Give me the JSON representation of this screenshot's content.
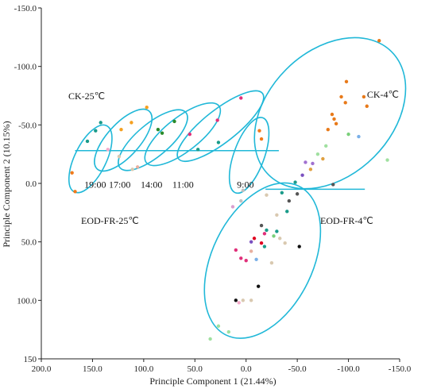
{
  "chart_data": {
    "type": "scatter",
    "xlabel": "Principle Component 1 (21.44%)",
    "ylabel": "Principle Component 2 (10.15%)",
    "xlim": [
      200,
      -150
    ],
    "ylim": [
      -150,
      150
    ],
    "x_ticks": [
      200,
      150,
      100,
      50,
      0,
      -50,
      -100,
      -150
    ],
    "x_tick_labels": [
      "200.0",
      "150.0",
      "100.0",
      "50.0",
      "0.0",
      "-50.0",
      "-100.0",
      "-150.0"
    ],
    "y_ticks": [
      -150,
      -100,
      -50,
      0,
      50,
      100,
      150
    ],
    "y_tick_labels": [
      "-150.0",
      "-100.0",
      "-50.0",
      "0.0",
      "50.0",
      "100.0",
      "150"
    ],
    "grid": false,
    "accent_color": "#21b8d8",
    "points": [
      {
        "x": 170,
        "y": -9,
        "color": "#f07a1a"
      },
      {
        "x": 167,
        "y": 7,
        "color": "#f07a1a"
      },
      {
        "x": 155,
        "y": -36,
        "color": "#1a9b8a"
      },
      {
        "x": 147,
        "y": -45,
        "color": "#1a9b8a"
      },
      {
        "x": 142,
        "y": -52,
        "color": "#1a9b8a"
      },
      {
        "x": 135,
        "y": -29,
        "color": "#f5a9c9"
      },
      {
        "x": 124,
        "y": -23,
        "color": "#d9c9b0"
      },
      {
        "x": 122,
        "y": -46,
        "color": "#f5a020"
      },
      {
        "x": 112,
        "y": -52,
        "color": "#f5a020"
      },
      {
        "x": 97,
        "y": -65,
        "color": "#f5a020"
      },
      {
        "x": 111,
        "y": -12,
        "color": "#d9c9b0"
      },
      {
        "x": 106,
        "y": -14,
        "color": "#e8b0a0"
      },
      {
        "x": 86,
        "y": -46,
        "color": "#2a8a2a"
      },
      {
        "x": 82,
        "y": -43,
        "color": "#2a8a2a"
      },
      {
        "x": 70,
        "y": -53,
        "color": "#2a8a2a"
      },
      {
        "x": 55,
        "y": -42,
        "color": "#e0307a"
      },
      {
        "x": 47,
        "y": -29,
        "color": "#1a9b8a"
      },
      {
        "x": 28,
        "y": -54,
        "color": "#e0307a"
      },
      {
        "x": 27,
        "y": -35,
        "color": "#1a9b8a"
      },
      {
        "x": 5,
        "y": -73,
        "color": "#e0307a"
      },
      {
        "x": 13,
        "y": 20,
        "color": "#d9a0d0"
      },
      {
        "x": 5,
        "y": 15,
        "color": "#c0c0c0"
      },
      {
        "x": 3,
        "y": 6,
        "color": "#c0c0c0"
      },
      {
        "x": -15,
        "y": -38,
        "color": "#f07a1a"
      },
      {
        "x": -13,
        "y": -45,
        "color": "#f07a1a"
      },
      {
        "x": -130,
        "y": -122,
        "color": "#e87a1a"
      },
      {
        "x": -98,
        "y": -87,
        "color": "#e87a1a"
      },
      {
        "x": -93,
        "y": -74,
        "color": "#e87a1a"
      },
      {
        "x": -115,
        "y": -74,
        "color": "#e87a1a"
      },
      {
        "x": -118,
        "y": -66,
        "color": "#e87a1a"
      },
      {
        "x": -97,
        "y": -69,
        "color": "#e87a1a"
      },
      {
        "x": -84,
        "y": -59,
        "color": "#e87a1a"
      },
      {
        "x": -86,
        "y": -55,
        "color": "#e87a1a"
      },
      {
        "x": -88,
        "y": -51,
        "color": "#e87a1a"
      },
      {
        "x": -80,
        "y": -46,
        "color": "#e87a1a"
      },
      {
        "x": -100,
        "y": -42,
        "color": "#7ad07a"
      },
      {
        "x": -110,
        "y": -40,
        "color": "#7ab0e8"
      },
      {
        "x": -138,
        "y": -20,
        "color": "#a0e0a0"
      },
      {
        "x": -78,
        "y": -32,
        "color": "#a0e0a0"
      },
      {
        "x": -70,
        "y": -25,
        "color": "#a0e0a0"
      },
      {
        "x": -75,
        "y": -21,
        "color": "#e0a040"
      },
      {
        "x": -65,
        "y": -17,
        "color": "#a070d0"
      },
      {
        "x": -58,
        "y": -18,
        "color": "#a070d0"
      },
      {
        "x": -63,
        "y": -12,
        "color": "#e0a040"
      },
      {
        "x": -55,
        "y": -7,
        "color": "#7a50c0"
      },
      {
        "x": -85,
        "y": 1,
        "color": "#555555"
      },
      {
        "x": -48,
        "y": -1,
        "color": "#1a9b8a"
      },
      {
        "x": -50,
        "y": 9,
        "color": "#555555"
      },
      {
        "x": -35,
        "y": 8,
        "color": "#1a9b8a"
      },
      {
        "x": -20,
        "y": 10,
        "color": "#d9c9b0"
      },
      {
        "x": -42,
        "y": 15,
        "color": "#555555"
      },
      {
        "x": -40,
        "y": 24,
        "color": "#1a9b8a"
      },
      {
        "x": -30,
        "y": 27,
        "color": "#d9c9b0"
      },
      {
        "x": -15,
        "y": 36,
        "color": "#555555"
      },
      {
        "x": -20,
        "y": 40,
        "color": "#1a9b8a"
      },
      {
        "x": -18,
        "y": 43,
        "color": "#e0307a"
      },
      {
        "x": -30,
        "y": 41,
        "color": "#1a9b8a"
      },
      {
        "x": -27,
        "y": 45,
        "color": "#7ad07a"
      },
      {
        "x": -33,
        "y": 47,
        "color": "#d9c9b0"
      },
      {
        "x": -38,
        "y": 51,
        "color": "#d9c9b0"
      },
      {
        "x": -8,
        "y": 47,
        "color": "#e00020"
      },
      {
        "x": -5,
        "y": 50,
        "color": "#7a50c0"
      },
      {
        "x": -18,
        "y": 54,
        "color": "#1a9b8a"
      },
      {
        "x": -15,
        "y": 51,
        "color": "#e00020"
      },
      {
        "x": -52,
        "y": 54,
        "color": "#111111"
      },
      {
        "x": 10,
        "y": 57,
        "color": "#e0307a"
      },
      {
        "x": -5,
        "y": 58,
        "color": "#e8b0a0"
      },
      {
        "x": 5,
        "y": 64,
        "color": "#e0307a"
      },
      {
        "x": 0,
        "y": 66,
        "color": "#e0307a"
      },
      {
        "x": -10,
        "y": 65,
        "color": "#7ab0e8"
      },
      {
        "x": -25,
        "y": 68,
        "color": "#d9c9b0"
      },
      {
        "x": -12,
        "y": 88,
        "color": "#111111"
      },
      {
        "x": 10,
        "y": 100,
        "color": "#111111"
      },
      {
        "x": 7,
        "y": 102,
        "color": "#f5a9c9"
      },
      {
        "x": -5,
        "y": 100,
        "color": "#d9c9b0"
      },
      {
        "x": 3,
        "y": 100,
        "color": "#d9c9b0"
      },
      {
        "x": 27,
        "y": 122,
        "color": "#a0e0a0"
      },
      {
        "x": 17,
        "y": 127,
        "color": "#a0e0a0"
      },
      {
        "x": 35,
        "y": 133,
        "color": "#a0e0a0"
      }
    ],
    "ellipses": [
      {
        "cx": 152,
        "cy": -21,
        "rx": 36,
        "ry": 13.5,
        "angle": -64
      },
      {
        "cx": 120,
        "cy": -37,
        "rx": 38,
        "ry": 14,
        "angle": -48
      },
      {
        "cx": 91,
        "cy": -37,
        "rx": 42,
        "ry": 14,
        "angle": -40
      },
      {
        "cx": 62,
        "cy": -42,
        "rx": 45,
        "ry": 14.5,
        "angle": -38
      },
      {
        "cx": 25,
        "cy": -49,
        "rx": 52,
        "ry": 14,
        "angle": -38
      },
      {
        "cx": -3,
        "cy": -24,
        "rx": 39,
        "ry": 13,
        "angle": -70
      },
      {
        "cx": -82,
        "cy": -60,
        "rx": 85,
        "ry": 53,
        "angle": -45
      },
      {
        "cx": -16,
        "cy": 66,
        "rx": 81,
        "ry": 43,
        "angle": -64
      }
    ],
    "reference_lines": [
      {
        "x1": 167,
        "x2": -32,
        "y": -28
      },
      {
        "x1": -19,
        "x2": -116,
        "y": 5
      }
    ],
    "annotations": [
      {
        "text": "CK-25℃",
        "x": 160,
        "y": -74
      },
      {
        "text": "CK-4℃",
        "x": -120,
        "y": -74
      },
      {
        "text": "EOD-FR-25℃",
        "x": 141,
        "y": -33,
        "y_note": "unused"
      },
      {
        "text": "EOD-FR-4℃",
        "x": -58,
        "y": 33
      },
      {
        "text": "19:00",
        "x": 158,
        "y": 1
      },
      {
        "text": "17:00",
        "x": 134,
        "y": 1
      },
      {
        "text": "14:00",
        "x": 103,
        "y": 1
      },
      {
        "text": "11:00",
        "x": 72,
        "y": 1
      },
      {
        "text": "9:00",
        "x": 9,
        "y": 1
      }
    ]
  }
}
